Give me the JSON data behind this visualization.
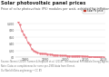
{
  "title": "Solar photovoltaic panel prices",
  "subtitle": "Price of solar photovoltaic (PV) modules per watt, adjusted for inflation.",
  "line_color": "#e8737e",
  "background_color": "#ffffff",
  "plot_bg_color": "#ffffff",
  "years": [
    1976,
    1977,
    1978,
    1979,
    1980,
    1981,
    1982,
    1983,
    1984,
    1985,
    1986,
    1987,
    1988,
    1989,
    1990,
    1991,
    1992,
    1993,
    1994,
    1995,
    1996,
    1997,
    1998,
    1999,
    2000,
    2001,
    2002,
    2003,
    2004,
    2005,
    2006,
    2007,
    2008,
    2009,
    2010,
    2011,
    2012,
    2013,
    2014,
    2015,
    2016,
    2017,
    2018,
    2019
  ],
  "values": [
    106.0,
    96.0,
    79.0,
    68.0,
    60.0,
    44.0,
    36.5,
    24.0,
    18.5,
    16.0,
    13.0,
    11.5,
    10.8,
    10.0,
    9.5,
    8.5,
    8.0,
    7.5,
    6.5,
    6.0,
    5.5,
    5.0,
    4.5,
    4.0,
    3.8,
    3.5,
    3.2,
    3.0,
    3.0,
    3.2,
    3.5,
    3.3,
    3.0,
    2.5,
    1.9,
    1.5,
    0.9,
    0.75,
    0.65,
    0.55,
    0.46,
    0.4,
    0.28,
    0.25
  ],
  "ylim": [
    0,
    106
  ],
  "yticks": [
    0,
    20,
    40,
    60,
    80,
    100
  ],
  "ytick_labels": [
    "$0",
    "$20",
    "$40",
    "$60",
    "$80",
    "$100"
  ],
  "xlim": [
    1975,
    2020
  ],
  "xticks": [
    1980,
    1990,
    2000,
    2010,
    2019
  ],
  "legend_label": "Solar PV price",
  "legend_color": "#c0392b",
  "source_text": "Source: Nemet (2009); Farmer & Hepburn et al. (2019); International Renewable Energy Agency (IRENA)\nNote: Data on completeness for some pre-1990 data from Nemet.\nOurWorldInData.org/energy • CC BY",
  "title_fontsize": 3.8,
  "subtitle_fontsize": 2.4,
  "axis_fontsize": 2.3,
  "source_fontsize": 1.8
}
